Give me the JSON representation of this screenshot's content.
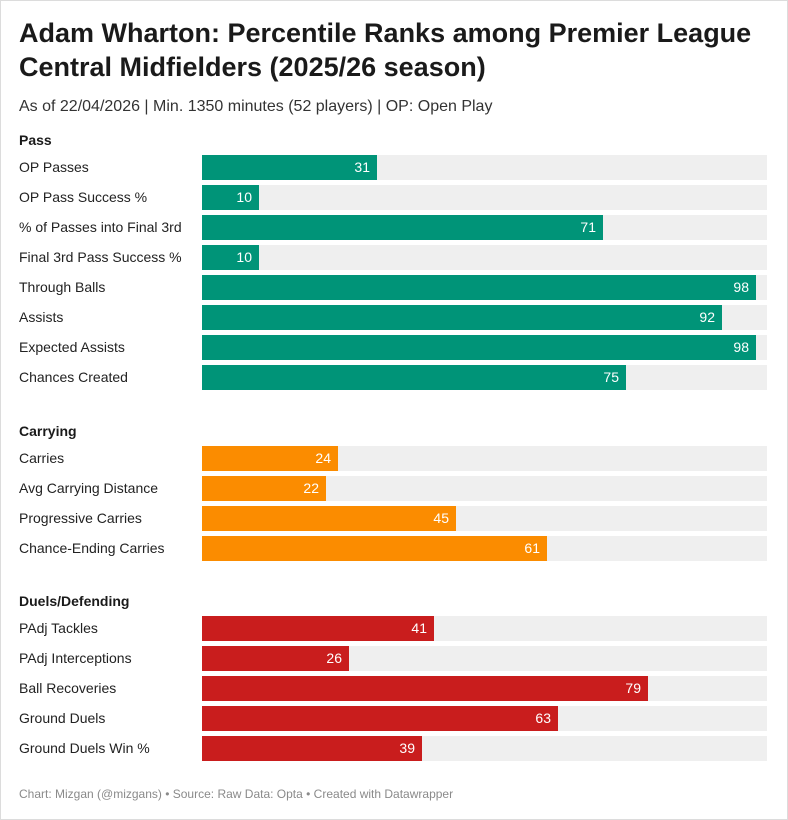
{
  "title": "Adam Wharton: Percentile Ranks among Premier League Central Midfielders (2025/26 season)",
  "subtitle": "As of 22/04/2026 | Min. 1350 minutes (52 players) | OP: Open Play",
  "footer": "Chart: Mizgan (@mizgans) • Source: Raw Data: Opta • Created with Datawrapper",
  "chart_data": {
    "type": "bar",
    "orientation": "horizontal",
    "xlim": [
      0,
      100
    ],
    "groups": [
      {
        "name": "Pass",
        "color": "#009478",
        "categories": [
          "OP Passes",
          "OP Pass Success %",
          "% of Passes into Final 3rd",
          "Final 3rd Pass Success %",
          "Through Balls",
          "Assists",
          "Expected Assists",
          "Chances Created"
        ],
        "values": [
          31,
          10,
          71,
          10,
          98,
          92,
          98,
          75
        ]
      },
      {
        "name": "Carrying",
        "color": "#FB8C00",
        "categories": [
          "Carries",
          "Avg Carrying Distance",
          "Progressive Carries",
          "Chance-Ending Carries"
        ],
        "values": [
          24,
          22,
          45,
          61
        ]
      },
      {
        "name": "Duels/Defending",
        "color": "#C91D1D",
        "categories": [
          "PAdj Tackles",
          "PAdj Interceptions",
          "Ball Recoveries",
          "Ground Duels",
          "Ground Duels Win %"
        ],
        "values": [
          41,
          26,
          79,
          63,
          39
        ]
      }
    ]
  }
}
